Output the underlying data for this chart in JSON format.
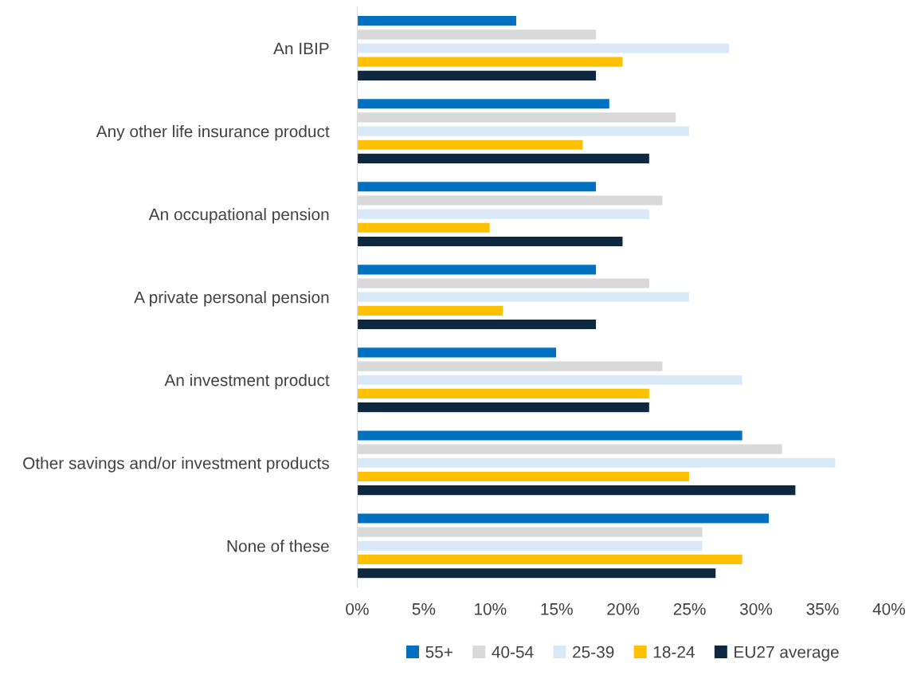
{
  "chart_data": {
    "type": "bar",
    "orientation": "horizontal",
    "categories": [
      "An IBIP",
      "Any other life insurance product",
      "An occupational pension",
      "A private personal pension",
      "An investment product",
      "Other savings and/or investment products",
      "None of these"
    ],
    "series": [
      {
        "name": "55+",
        "color": "#0070c0",
        "values": [
          12,
          19,
          18,
          18,
          15,
          29,
          31
        ]
      },
      {
        "name": "40-54",
        "color": "#d9d9d9",
        "values": [
          18,
          24,
          23,
          22,
          23,
          32,
          26
        ]
      },
      {
        "name": "25-39",
        "color": "#dae9f7",
        "values": [
          28,
          25,
          22,
          25,
          29,
          36,
          26
        ]
      },
      {
        "name": "18-24",
        "color": "#ffc000",
        "values": [
          20,
          17,
          10,
          11,
          22,
          25,
          29
        ]
      },
      {
        "name": "EU27 average",
        "color": "#0e2841",
        "values": [
          18,
          22,
          20,
          18,
          22,
          33,
          27
        ]
      }
    ],
    "xlim": [
      0,
      40
    ],
    "xticks": [
      {
        "value": 0,
        "label": "0%"
      },
      {
        "value": 5,
        "label": "5%"
      },
      {
        "value": 10,
        "label": "10%"
      },
      {
        "value": 15,
        "label": "15%"
      },
      {
        "value": 20,
        "label": "20%"
      },
      {
        "value": 25,
        "label": "25%"
      },
      {
        "value": 30,
        "label": "30%"
      },
      {
        "value": 35,
        "label": "35%"
      },
      {
        "value": 40,
        "label": "40%"
      }
    ],
    "grid": false,
    "legend": "bottom"
  }
}
